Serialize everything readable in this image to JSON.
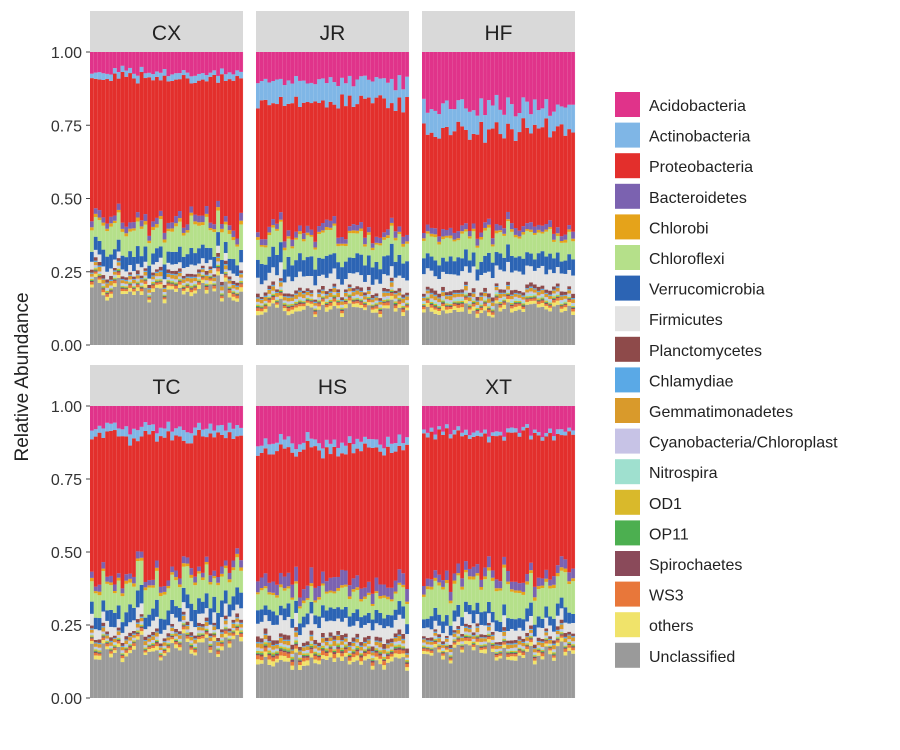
{
  "chart_data": {
    "type": "bar",
    "stacked": true,
    "faceted": true,
    "ylabel": "Relative Abundance",
    "ylim": [
      0,
      1
    ],
    "yticks": [
      "0.00",
      "0.25",
      "0.50",
      "0.75",
      "1.00"
    ],
    "legend_position": "right",
    "samples_per_site": 40,
    "taxa": [
      {
        "name": "Acidobacteria",
        "color": "#E0338A"
      },
      {
        "name": "Actinobacteria",
        "color": "#7FB6E6"
      },
      {
        "name": "Proteobacteria",
        "color": "#E32F2C"
      },
      {
        "name": "Bacteroidetes",
        "color": "#7B62B0"
      },
      {
        "name": "Chlorobi",
        "color": "#E5A31A"
      },
      {
        "name": "Chloroflexi",
        "color": "#B5E08A"
      },
      {
        "name": "Verrucomicrobia",
        "color": "#2C64B4"
      },
      {
        "name": "Firmicutes",
        "color": "#E3E3E3"
      },
      {
        "name": "Planctomycetes",
        "color": "#8E4A4A"
      },
      {
        "name": "Chlamydiae",
        "color": "#5AA9E6"
      },
      {
        "name": "Gemmatimonadetes",
        "color": "#D99A2B"
      },
      {
        "name": "Cyanobacteria/Chloroplast",
        "color": "#C7C3E6"
      },
      {
        "name": "Nitrospira",
        "color": "#9FE0CF"
      },
      {
        "name": "OD1",
        "color": "#D9B92B"
      },
      {
        "name": "OP11",
        "color": "#4CAF50"
      },
      {
        "name": "Spirochaetes",
        "color": "#8A4A5A"
      },
      {
        "name": "WS3",
        "color": "#E8773A"
      },
      {
        "name": "others",
        "color": "#F0E36A"
      },
      {
        "name": "Unclassified",
        "color": "#9A9A9A"
      }
    ],
    "panels": [
      {
        "site": "CX",
        "approx_composition": {
          "Unclassified": 0.19,
          "others": 0.012,
          "WS3": 0.008,
          "Spirochaetes": 0.004,
          "OP11": 0.003,
          "OD1": 0.004,
          "Nitrospira": 0.004,
          "Cyanobacteria/Chloroplast": 0.006,
          "Gemmatimonadetes": 0.012,
          "Chlamydiae": 0.004,
          "Planctomycetes": 0.01,
          "Firmicutes": 0.025,
          "Verrucomicrobia": 0.045,
          "Chloroflexi": 0.08,
          "Chlorobi": 0.01,
          "Bacteroidetes": 0.02,
          "Proteobacteria": 0.475,
          "Actinobacteria": 0.02,
          "Acidobacteria": 0.068
        }
      },
      {
        "site": "JR",
        "approx_composition": {
          "Unclassified": 0.12,
          "others": 0.012,
          "WS3": 0.008,
          "Spirochaetes": 0.004,
          "OP11": 0.003,
          "OD1": 0.004,
          "Nitrospira": 0.004,
          "Cyanobacteria/Chloroplast": 0.006,
          "Gemmatimonadetes": 0.012,
          "Chlamydiae": 0.004,
          "Planctomycetes": 0.01,
          "Firmicutes": 0.045,
          "Verrucomicrobia": 0.06,
          "Chloroflexi": 0.07,
          "Chlorobi": 0.008,
          "Bacteroidetes": 0.02,
          "Proteobacteria": 0.44,
          "Actinobacteria": 0.07,
          "Acidobacteria": 0.1
        }
      },
      {
        "site": "HF",
        "approx_composition": {
          "Unclassified": 0.12,
          "others": 0.012,
          "WS3": 0.008,
          "Spirochaetes": 0.004,
          "OP11": 0.003,
          "OD1": 0.004,
          "Nitrospira": 0.006,
          "Cyanobacteria/Chloroplast": 0.006,
          "Gemmatimonadetes": 0.012,
          "Chlamydiae": 0.004,
          "Planctomycetes": 0.012,
          "Firmicutes": 0.06,
          "Verrucomicrobia": 0.05,
          "Chloroflexi": 0.07,
          "Chlorobi": 0.008,
          "Bacteroidetes": 0.02,
          "Proteobacteria": 0.33,
          "Actinobacteria": 0.08,
          "Acidobacteria": 0.19
        }
      },
      {
        "site": "TC",
        "approx_composition": {
          "Unclassified": 0.17,
          "others": 0.012,
          "WS3": 0.008,
          "Spirochaetes": 0.004,
          "OP11": 0.003,
          "OD1": 0.004,
          "Nitrospira": 0.004,
          "Cyanobacteria/Chloroplast": 0.006,
          "Gemmatimonadetes": 0.012,
          "Chlamydiae": 0.004,
          "Planctomycetes": 0.01,
          "Firmicutes": 0.035,
          "Verrucomicrobia": 0.05,
          "Chloroflexi": 0.085,
          "Chlorobi": 0.01,
          "Bacteroidetes": 0.02,
          "Proteobacteria": 0.46,
          "Actinobacteria": 0.03,
          "Acidobacteria": 0.073
        }
      },
      {
        "site": "HS",
        "approx_composition": {
          "Unclassified": 0.12,
          "others": 0.015,
          "WS3": 0.012,
          "Spirochaetes": 0.006,
          "OP11": 0.004,
          "OD1": 0.006,
          "Nitrospira": 0.004,
          "Cyanobacteria/Chloroplast": 0.006,
          "Gemmatimonadetes": 0.014,
          "Chlamydiae": 0.004,
          "Planctomycetes": 0.015,
          "Firmicutes": 0.05,
          "Verrucomicrobia": 0.04,
          "Chloroflexi": 0.06,
          "Chlorobi": 0.008,
          "Bacteroidetes": 0.04,
          "Proteobacteria": 0.45,
          "Actinobacteria": 0.03,
          "Acidobacteria": 0.116
        }
      },
      {
        "site": "XT",
        "approx_composition": {
          "Unclassified": 0.15,
          "others": 0.012,
          "WS3": 0.008,
          "Spirochaetes": 0.004,
          "OP11": 0.003,
          "OD1": 0.004,
          "Nitrospira": 0.004,
          "Cyanobacteria/Chloroplast": 0.006,
          "Gemmatimonadetes": 0.012,
          "Chlamydiae": 0.004,
          "Planctomycetes": 0.01,
          "Firmicutes": 0.035,
          "Verrucomicrobia": 0.04,
          "Chloroflexi": 0.1,
          "Chlorobi": 0.01,
          "Bacteroidetes": 0.03,
          "Proteobacteria": 0.47,
          "Actinobacteria": 0.015,
          "Acidobacteria": 0.087
        }
      }
    ]
  }
}
